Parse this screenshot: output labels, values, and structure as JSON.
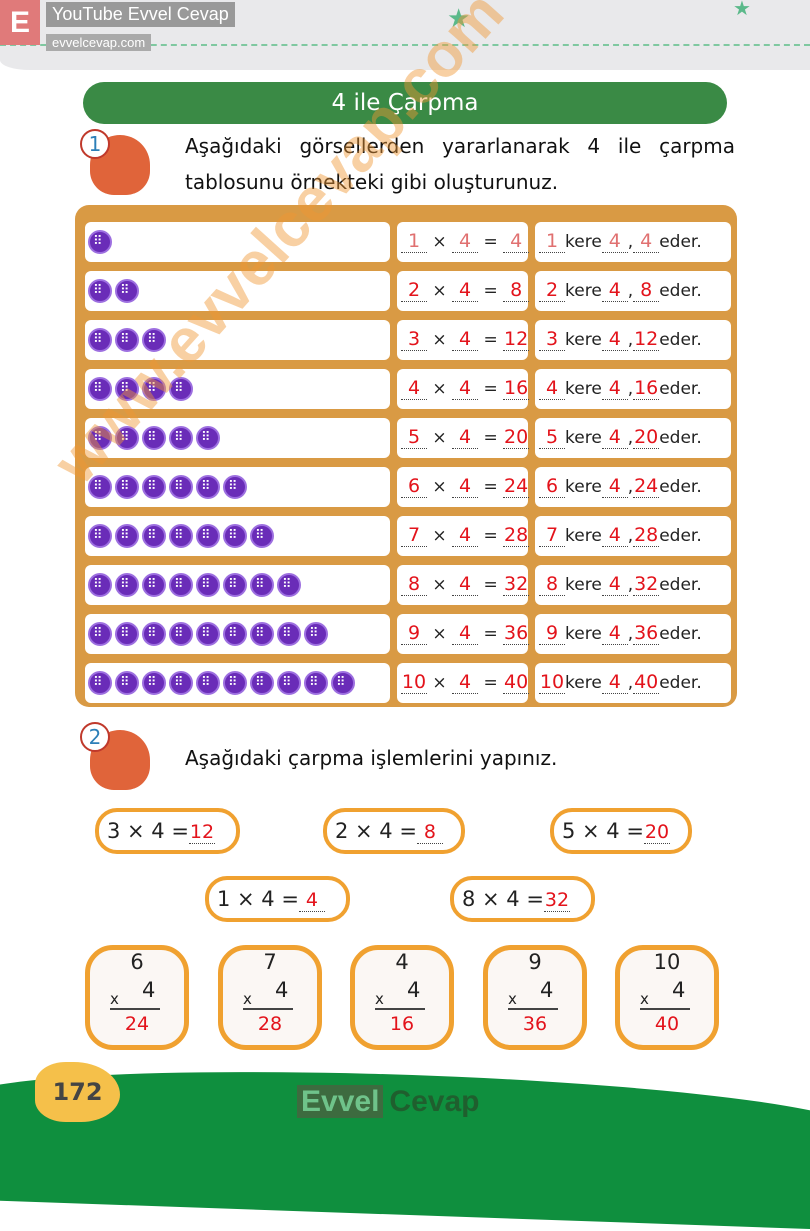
{
  "header": {
    "brand_letter": "E",
    "youtube": "YouTube Evvel Cevap",
    "site": "evvelcevap.com"
  },
  "title": "4 ile Çarpma",
  "q1": {
    "number": "1",
    "text": "Aşağıdaki görsellerden yararlanarak 4 ile çarpma tablosunu örnekteki gibi oluşturunuz.",
    "kere": "kere",
    "eder": "eder.",
    "times": "×",
    "equals": "=",
    "rows": [
      {
        "n": "1",
        "m": "4",
        "p": "4"
      },
      {
        "n": "2",
        "m": "4",
        "p": "8"
      },
      {
        "n": "3",
        "m": "4",
        "p": "12"
      },
      {
        "n": "4",
        "m": "4",
        "p": "16"
      },
      {
        "n": "5",
        "m": "4",
        "p": "20"
      },
      {
        "n": "6",
        "m": "4",
        "p": "24"
      },
      {
        "n": "7",
        "m": "4",
        "p": "28"
      },
      {
        "n": "8",
        "m": "4",
        "p": "32"
      },
      {
        "n": "9",
        "m": "4",
        "p": "36"
      },
      {
        "n": "10",
        "m": "4",
        "p": "40"
      }
    ]
  },
  "q2": {
    "number": "2",
    "text": "Aşağıdaki çarpma işlemlerini yapınız.",
    "ovals": [
      {
        "expr": "3 × 4 =",
        "ans": "12"
      },
      {
        "expr": "2 × 4 =",
        "ans": "8"
      },
      {
        "expr": "5 × 4 =",
        "ans": "20"
      },
      {
        "expr": "1 × 4 =",
        "ans": "4"
      },
      {
        "expr": "8 × 4 =",
        "ans": "32"
      }
    ],
    "cards": [
      {
        "a": "6",
        "b": "4",
        "ans": "24"
      },
      {
        "a": "7",
        "b": "4",
        "ans": "28"
      },
      {
        "a": "4",
        "b": "4",
        "ans": "16"
      },
      {
        "a": "9",
        "b": "4",
        "ans": "36"
      },
      {
        "a": "10",
        "b": "4",
        "ans": "40"
      }
    ],
    "times": "x"
  },
  "footer": {
    "page": "172",
    "logo_a": "Evvel",
    "logo_b": "Cevap"
  },
  "watermark": "www.evvelcevap.com"
}
